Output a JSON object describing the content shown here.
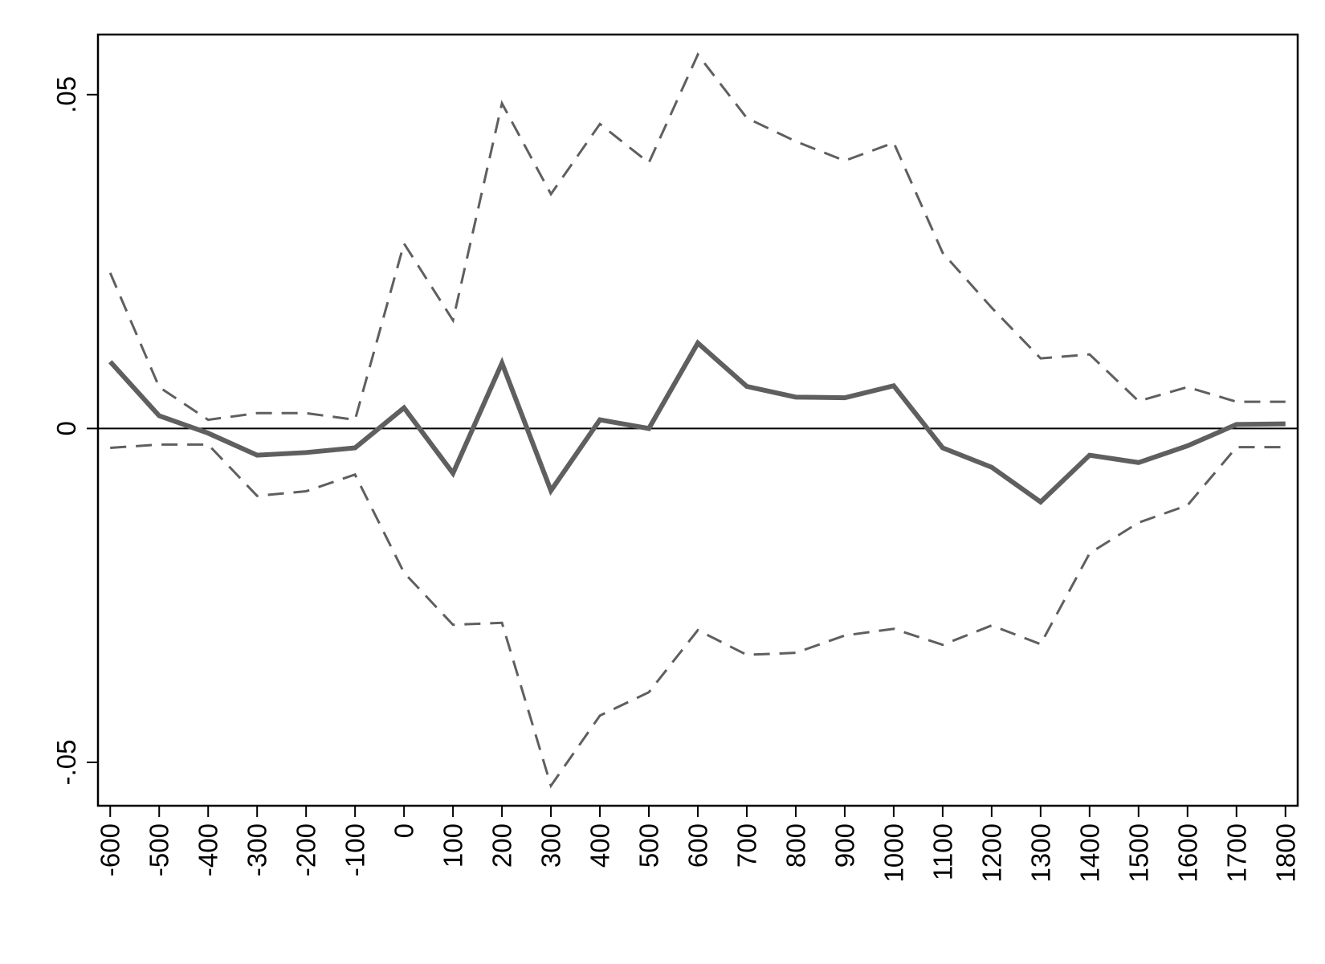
{
  "chart_data": {
    "type": "line",
    "title": "",
    "xlabel": "",
    "ylabel": "",
    "x": [
      -600,
      -500,
      -400,
      -300,
      -200,
      -100,
      0,
      100,
      200,
      300,
      400,
      500,
      600,
      700,
      800,
      900,
      1000,
      1100,
      1200,
      1300,
      1400,
      1500,
      1600,
      1700,
      1800
    ],
    "x_tick_labels": [
      "-600",
      "-500",
      "-400",
      "-300",
      "-200",
      "-100",
      "0",
      "100",
      "200",
      "300",
      "400",
      "500",
      "600",
      "700",
      "800",
      "900",
      "1000",
      "1100",
      "1200",
      "1300",
      "1400",
      "1500",
      "1600",
      "1700",
      "1800"
    ],
    "y_ticks": [
      -0.05,
      0,
      0.05
    ],
    "y_tick_labels": [
      "-.05",
      "0",
      ".05"
    ],
    "xlim": [
      -625,
      1825
    ],
    "ylim": [
      -0.0565,
      0.059
    ],
    "reference_line_y": 0,
    "grid": false,
    "legend": "none",
    "series": [
      {
        "style": "solid",
        "color": "#5f5f5f",
        "values": [
          0.01,
          0.0019,
          -0.0007,
          -0.004,
          -0.0036,
          -0.0029,
          0.0031,
          -0.0067,
          0.0098,
          -0.0093,
          0.0013,
          0.0,
          0.0128,
          0.0063,
          0.0047,
          0.0046,
          0.0064,
          -0.0029,
          -0.0058,
          -0.011,
          -0.004,
          -0.0051,
          -0.0026,
          0.0006,
          0.0007
        ]
      },
      {
        "style": "dashed",
        "color": "#5f5f5f",
        "values": [
          0.0233,
          0.0062,
          0.0013,
          0.0023,
          0.0023,
          0.0013,
          0.0277,
          0.0162,
          0.0487,
          0.0351,
          0.0456,
          0.0398,
          0.056,
          0.0465,
          0.043,
          0.0401,
          0.0428,
          0.0263,
          0.0181,
          0.0105,
          0.0111,
          0.0041,
          0.0062,
          0.004,
          0.004
        ]
      },
      {
        "style": "dashed",
        "color": "#5f5f5f",
        "values": [
          -0.0029,
          -0.0024,
          -0.0024,
          -0.0101,
          -0.0094,
          -0.0069,
          -0.0216,
          -0.0294,
          -0.0291,
          -0.0535,
          -0.043,
          -0.0395,
          -0.0302,
          -0.0339,
          -0.0336,
          -0.031,
          -0.03,
          -0.0324,
          -0.0295,
          -0.0323,
          -0.0187,
          -0.0141,
          -0.0115,
          -0.0028,
          -0.0028
        ]
      }
    ]
  }
}
